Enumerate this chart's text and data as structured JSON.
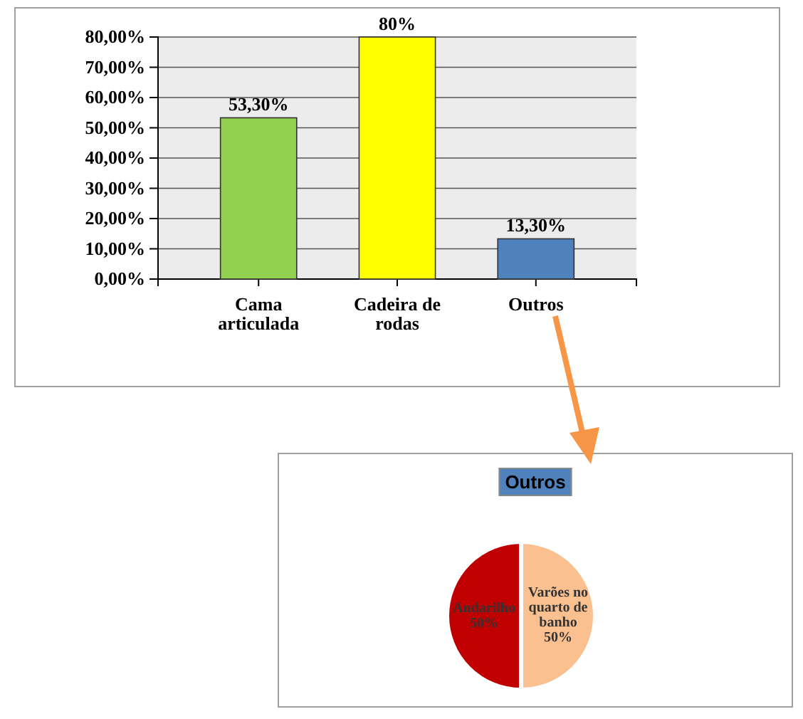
{
  "chart_data": [
    {
      "type": "bar",
      "categories": [
        "Cama articulada",
        "Cadeira de rodas",
        "Outros"
      ],
      "colors": [
        "#92d050",
        "#ffff00",
        "#4f81bd"
      ],
      "values": [
        53.3,
        80,
        13.3
      ],
      "value_labels": [
        "53,30%",
        "80%",
        "13,30%"
      ],
      "ylim": [
        0,
        80
      ],
      "yticks": [
        {
          "value": 0,
          "label": "0,00%"
        },
        {
          "value": 10,
          "label": "10,00%"
        },
        {
          "value": 20,
          "label": "20,00%"
        },
        {
          "value": 30,
          "label": "30,00%"
        },
        {
          "value": 40,
          "label": "40,00%"
        },
        {
          "value": 50,
          "label": "50,00%"
        },
        {
          "value": 60,
          "label": "60,00%"
        },
        {
          "value": 70,
          "label": "70,00%"
        },
        {
          "value": 80,
          "label": "80,00%"
        }
      ],
      "grid": "y"
    },
    {
      "type": "pie",
      "title": "Outros",
      "categories": [
        "Andarilho",
        "Varões no quarto de banho"
      ],
      "values": [
        50,
        50
      ],
      "colors": [
        "#c00000",
        "#fac090"
      ],
      "value_labels": [
        "50%",
        "50%"
      ]
    }
  ]
}
